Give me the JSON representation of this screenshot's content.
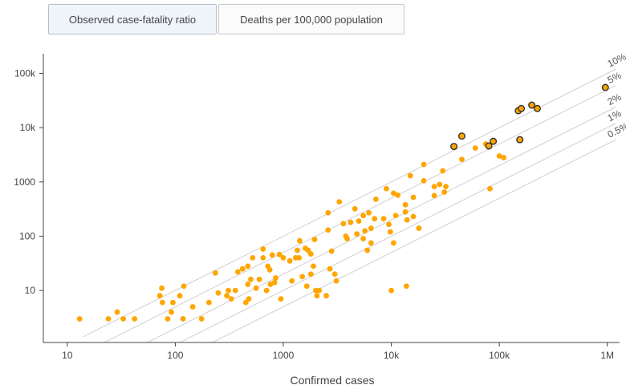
{
  "tabs": [
    {
      "label": "Observed case-fatality ratio",
      "active": true
    },
    {
      "label": "Deaths per 100,000 population",
      "active": false
    }
  ],
  "chart_data": {
    "type": "scatter",
    "title": "",
    "xlabel": "Confirmed cases",
    "ylabel": "",
    "x_scale": "log",
    "y_scale": "log",
    "xlim": [
      6,
      1300000
    ],
    "ylim": [
      1.1,
      230000
    ],
    "x_ticks": [
      {
        "value": 10,
        "label": "10"
      },
      {
        "value": 100,
        "label": "100"
      },
      {
        "value": 1000,
        "label": "1000"
      },
      {
        "value": 10000,
        "label": "10k"
      },
      {
        "value": 100000,
        "label": "100k"
      },
      {
        "value": 1000000,
        "label": "1M"
      }
    ],
    "y_ticks": [
      {
        "value": 10,
        "label": "10"
      },
      {
        "value": 100,
        "label": "100"
      },
      {
        "value": 1000,
        "label": "1000"
      },
      {
        "value": 10000,
        "label": "10k"
      },
      {
        "value": 100000,
        "label": "100k"
      }
    ],
    "reference_lines": [
      {
        "ratio": 0.1,
        "label": "10%"
      },
      {
        "ratio": 0.05,
        "label": "5%"
      },
      {
        "ratio": 0.02,
        "label": "2%"
      },
      {
        "ratio": 0.01,
        "label": "1%"
      },
      {
        "ratio": 0.005,
        "label": "0.5%"
      }
    ],
    "marker_color": "#ffa500",
    "highlight_outline": "#333333",
    "series": [
      {
        "points": [
          [
            13,
            3
          ],
          [
            24,
            3
          ],
          [
            29,
            4
          ],
          [
            33,
            3
          ],
          [
            42,
            3
          ],
          [
            72,
            8
          ],
          [
            75,
            11
          ],
          [
            76,
            6
          ],
          [
            85,
            3
          ],
          [
            92,
            4
          ],
          [
            95,
            6
          ],
          [
            110,
            8
          ],
          [
            118,
            3
          ],
          [
            120,
            12
          ],
          [
            145,
            5
          ],
          [
            175,
            3
          ],
          [
            205,
            6
          ],
          [
            235,
            21
          ],
          [
            250,
            9
          ],
          [
            300,
            8
          ],
          [
            310,
            10
          ],
          [
            330,
            7
          ],
          [
            360,
            10
          ],
          [
            380,
            22
          ],
          [
            420,
            25
          ],
          [
            450,
            6
          ],
          [
            470,
            13
          ],
          [
            470,
            28
          ],
          [
            480,
            7
          ],
          [
            500,
            16
          ],
          [
            520,
            40
          ],
          [
            560,
            11
          ],
          [
            600,
            16
          ],
          [
            650,
            40
          ],
          [
            650,
            58
          ],
          [
            700,
            10
          ],
          [
            720,
            28
          ],
          [
            750,
            24
          ],
          [
            760,
            13
          ],
          [
            790,
            45
          ],
          [
            830,
            14
          ],
          [
            850,
            17
          ],
          [
            920,
            46
          ],
          [
            950,
            7
          ],
          [
            1000,
            40
          ],
          [
            1150,
            35
          ],
          [
            1200,
            15
          ],
          [
            1300,
            40
          ],
          [
            1350,
            55
          ],
          [
            1400,
            40
          ],
          [
            1420,
            82
          ],
          [
            1500,
            18
          ],
          [
            1600,
            60
          ],
          [
            1650,
            12
          ],
          [
            1700,
            55
          ],
          [
            1800,
            47
          ],
          [
            1800,
            20
          ],
          [
            1900,
            28
          ],
          [
            1950,
            87
          ],
          [
            2000,
            10
          ],
          [
            2050,
            8
          ],
          [
            2150,
            10
          ],
          [
            2500,
            8
          ],
          [
            2600,
            270
          ],
          [
            2600,
            130
          ],
          [
            2700,
            25
          ],
          [
            2800,
            53
          ],
          [
            3000,
            20
          ],
          [
            3100,
            15
          ],
          [
            3300,
            430
          ],
          [
            3600,
            170
          ],
          [
            3800,
            100
          ],
          [
            3900,
            90
          ],
          [
            4200,
            180
          ],
          [
            4600,
            320
          ],
          [
            4800,
            110
          ],
          [
            5000,
            190
          ],
          [
            5500,
            240
          ],
          [
            5500,
            90
          ],
          [
            5700,
            125
          ],
          [
            6000,
            55
          ],
          [
            6200,
            270
          ],
          [
            6500,
            140
          ],
          [
            6500,
            75
          ],
          [
            7000,
            210
          ],
          [
            7200,
            480
          ],
          [
            8500,
            210
          ],
          [
            9000,
            750
          ],
          [
            9500,
            165
          ],
          [
            9800,
            120
          ],
          [
            10500,
            75
          ],
          [
            10000,
            10
          ],
          [
            10500,
            620
          ],
          [
            11000,
            240
          ],
          [
            11500,
            570
          ],
          [
            13500,
            380
          ],
          [
            13500,
            280
          ],
          [
            13800,
            12
          ],
          [
            14000,
            200
          ],
          [
            15000,
            1300
          ],
          [
            16000,
            230
          ],
          [
            16000,
            520
          ],
          [
            18000,
            140
          ],
          [
            20000,
            1050
          ],
          [
            20000,
            2100
          ],
          [
            25000,
            820
          ],
          [
            25000,
            560
          ],
          [
            28000,
            900
          ],
          [
            30000,
            1600
          ],
          [
            31000,
            650
          ],
          [
            32000,
            820
          ],
          [
            45000,
            2600
          ],
          [
            60000,
            4200
          ],
          [
            75000,
            5000
          ],
          [
            82000,
            750
          ],
          [
            100000,
            3000
          ],
          [
            110000,
            2800
          ]
        ]
      },
      {
        "name": "",
        "highlight": true,
        "points": [
          [
            38000,
            4500
          ],
          [
            45000,
            7000
          ],
          [
            80000,
            4600
          ],
          [
            88000,
            5600
          ],
          [
            150000,
            20500
          ],
          [
            155000,
            6000
          ],
          [
            160000,
            22500
          ],
          [
            200000,
            26000
          ],
          [
            225000,
            22500
          ],
          [
            960000,
            55000
          ]
        ]
      }
    ]
  }
}
